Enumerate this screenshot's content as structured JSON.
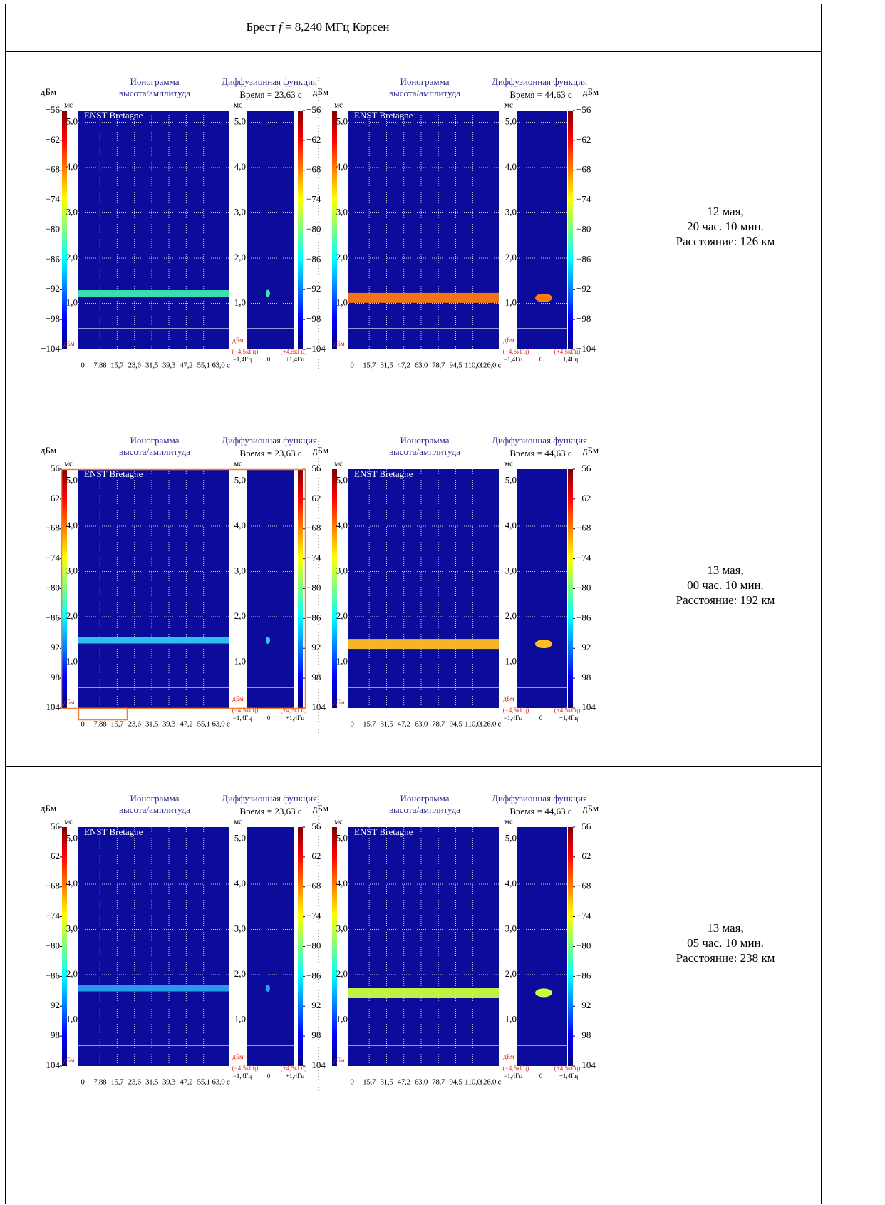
{
  "header": {
    "place_a": "Брест",
    "symbol": "f",
    "rest": "= 8,240 МГц  Корсен"
  },
  "labels": {
    "ionogram": "Ионограмма",
    "ionogram_sub": "высота/амплитуда",
    "diffusion": "Диффузионная функция",
    "dbm": "дБм",
    "ms": "мс",
    "station": "ENST Bretagne",
    "neg_khz": "(−4,5кГц)",
    "pos_khz": "(+4,5кГц)",
    "neg_hz": "−1,4Гц",
    "zero": "0",
    "pos_hz": "+1,4Гц"
  },
  "dbm_ticks": [
    -56,
    -62,
    -68,
    -74,
    -80,
    -86,
    -92,
    -98,
    -104
  ],
  "ms_ticks": [
    {
      "value": 5,
      "label": "5,0"
    },
    {
      "value": 4,
      "label": "4,0"
    },
    {
      "value": 3,
      "label": "3,0"
    },
    {
      "value": 2,
      "label": "2,0"
    },
    {
      "value": 1,
      "label": "1,0"
    }
  ],
  "panels": [
    {
      "time": "Время = 23,63 с",
      "xlim": [
        0,
        63
      ],
      "xticks": [
        0,
        {
          "value": 7.88,
          "label": "7,88"
        },
        {
          "value": 15.7,
          "label": "15,7"
        },
        {
          "value": 23.6,
          "label": "23,6"
        },
        {
          "value": 31.5,
          "label": "31,5"
        },
        {
          "value": 39.3,
          "label": "39,3"
        },
        {
          "value": 47.2,
          "label": "47,2"
        },
        {
          "value": 55.1,
          "label": "55,1"
        },
        {
          "value": 63,
          "label": "63,0 c"
        }
      ]
    },
    {
      "time": "Время = 44,63 с",
      "xlim": [
        0,
        126
      ],
      "xticks": [
        0,
        {
          "value": 15.7,
          "label": "15,7"
        },
        {
          "value": 31.5,
          "label": "31,5"
        },
        {
          "value": 47.2,
          "label": "47,2"
        },
        {
          "value": 63,
          "label": "63,0"
        },
        {
          "value": 78.7,
          "label": "78,7"
        },
        {
          "value": 94.5,
          "label": "94,5"
        },
        {
          "value": 110,
          "label": "110,0"
        },
        {
          "value": 126,
          "label": "126,0 c"
        }
      ]
    }
  ],
  "rows": [
    {
      "date": "12 мая,",
      "time": "20 час. 10 мин.",
      "distance": "Расстояние: 126 км",
      "bands": [
        {
          "ms": 1.22,
          "color": "#3ee8b0"
        },
        {
          "ms": 1.12,
          "color": "#ff7a10"
        }
      ]
    },
    {
      "date": "13 мая,",
      "time": "00 час. 10 мин.",
      "distance": "Расстояние: 192 км",
      "bands": [
        {
          "ms": 1.48,
          "color": "#30c8f0"
        },
        {
          "ms": 1.4,
          "color": "#ffc020"
        }
      ]
    },
    {
      "date": "13 мая,",
      "time": "05 час. 10 мин.",
      "distance": "Расстояние: 238 км",
      "bands": [
        {
          "ms": 1.7,
          "color": "#2aa0f0"
        },
        {
          "ms": 1.6,
          "color": "#c8ff40"
        }
      ]
    }
  ]
}
